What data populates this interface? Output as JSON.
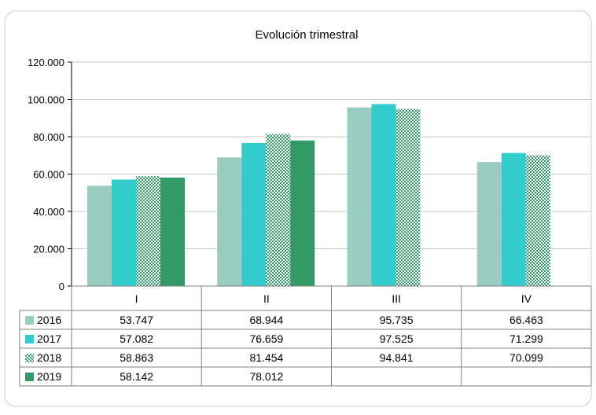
{
  "chart_data": {
    "type": "bar",
    "title": "Evolución trimestral",
    "categories": [
      "I",
      "II",
      "III",
      "IV"
    ],
    "ylim": [
      0,
      120000
    ],
    "yticks": [
      "0",
      "20.000",
      "40.000",
      "60.000",
      "80.000",
      "100.000",
      "120.000"
    ],
    "grid": true,
    "legend": "data-table-left",
    "series": [
      {
        "name": "2016",
        "color": "#99CCC0",
        "pattern": "solid",
        "values": [
          53747,
          68944,
          95735,
          66463
        ],
        "labels": [
          "53.747",
          "68.944",
          "95.735",
          "66.463"
        ]
      },
      {
        "name": "2017",
        "color": "#33CCCC",
        "pattern": "solid",
        "values": [
          57082,
          76659,
          97525,
          71299
        ],
        "labels": [
          "57.082",
          "76.659",
          "97.525",
          "71.299"
        ]
      },
      {
        "name": "2018",
        "color": "#339966",
        "pattern": "checker",
        "values": [
          58863,
          81454,
          94841,
          70099
        ],
        "labels": [
          "58.863",
          "81.454",
          "94.841",
          "70.099"
        ]
      },
      {
        "name": "2019",
        "color": "#339966",
        "pattern": "solid",
        "values": [
          58142,
          78012,
          null,
          null
        ],
        "labels": [
          "58.142",
          "78.012",
          "",
          ""
        ]
      }
    ]
  }
}
